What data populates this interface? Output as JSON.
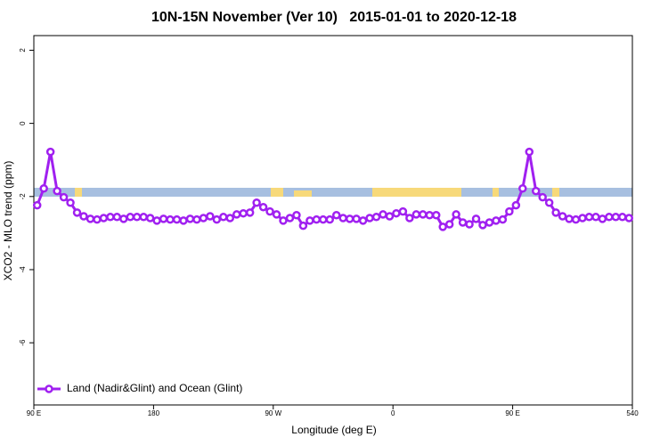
{
  "chart_data": {
    "type": "line",
    "title": "10N-15N November (Ver 10)   2015-01-01 to 2020-12-18",
    "x_label": "Longitude (deg E)",
    "y_label": "XCO2 - MLO trend (ppm)",
    "xlim": [
      90,
      540
    ],
    "ylim": [
      -7.7,
      2.4
    ],
    "xticks": [
      {
        "value": 90,
        "label": "90 E"
      },
      180,
      {
        "value": 270,
        "label": "90 W"
      },
      {
        "value": 360,
        "label": "0"
      },
      {
        "value": 450,
        "label": "90 E"
      },
      540
    ],
    "yticks": [
      2,
      0,
      -2,
      -4,
      -6
    ],
    "legend_position": "bottom-left",
    "x": [
      92.5,
      97.5,
      102.5,
      107.5,
      112.5,
      117.5,
      122.5,
      127.5,
      132.5,
      137.5,
      142.5,
      147.5,
      152.5,
      157.5,
      162.5,
      167.5,
      172.5,
      177.5,
      182.5,
      187.5,
      192.5,
      197.5,
      202.5,
      207.5,
      212.5,
      217.5,
      222.5,
      227.5,
      232.5,
      237.5,
      242.5,
      247.5,
      252.5,
      257.5,
      262.5,
      267.5,
      272.5,
      277.5,
      282.5,
      287.5,
      292.5,
      297.5,
      302.5,
      307.5,
      312.5,
      317.5,
      322.5,
      327.5,
      332.5,
      337.5,
      342.5,
      347.5,
      352.5,
      357.5,
      362.5,
      367.5,
      372.5,
      377.5,
      382.5,
      387.5,
      392.5,
      397.5,
      402.5,
      407.5,
      412.5,
      417.5,
      422.5,
      427.5,
      432.5,
      437.5,
      442.5,
      447.5,
      452.5,
      457.5,
      462.5,
      467.5,
      472.5,
      477.5,
      482.5,
      487.5,
      492.5,
      497.5,
      502.5,
      507.5,
      512.5,
      517.5,
      522.5,
      527.5,
      532.5,
      537.5
    ],
    "series": [
      {
        "name": "Land (Nadir&Glint) and Ocean (Glint)",
        "color": "#a020f0",
        "values": [
          -2.24,
          -1.78,
          -0.78,
          -1.85,
          -2.02,
          -2.17,
          -2.44,
          -2.54,
          -2.61,
          -2.63,
          -2.59,
          -2.56,
          -2.56,
          -2.61,
          -2.56,
          -2.56,
          -2.56,
          -2.59,
          -2.66,
          -2.61,
          -2.63,
          -2.63,
          -2.66,
          -2.61,
          -2.63,
          -2.59,
          -2.54,
          -2.63,
          -2.56,
          -2.59,
          -2.49,
          -2.46,
          -2.44,
          -2.17,
          -2.29,
          -2.41,
          -2.49,
          -2.66,
          -2.59,
          -2.51,
          -2.8,
          -2.66,
          -2.63,
          -2.63,
          -2.63,
          -2.51,
          -2.59,
          -2.61,
          -2.61,
          -2.66,
          -2.59,
          -2.56,
          -2.49,
          -2.54,
          -2.46,
          -2.41,
          -2.59,
          -2.49,
          -2.49,
          -2.51,
          -2.51,
          -2.83,
          -2.76,
          -2.49,
          -2.71,
          -2.76,
          -2.61,
          -2.78,
          -2.71,
          -2.66,
          -2.63,
          -2.41,
          -2.24,
          -1.78,
          -0.78,
          -1.85,
          -2.02,
          -2.17,
          -2.44,
          -2.54,
          -2.61,
          -2.63,
          -2.59,
          -2.56,
          -2.56,
          -2.61,
          -2.56,
          -2.56,
          -2.56,
          -2.59
        ]
      }
    ]
  }
}
